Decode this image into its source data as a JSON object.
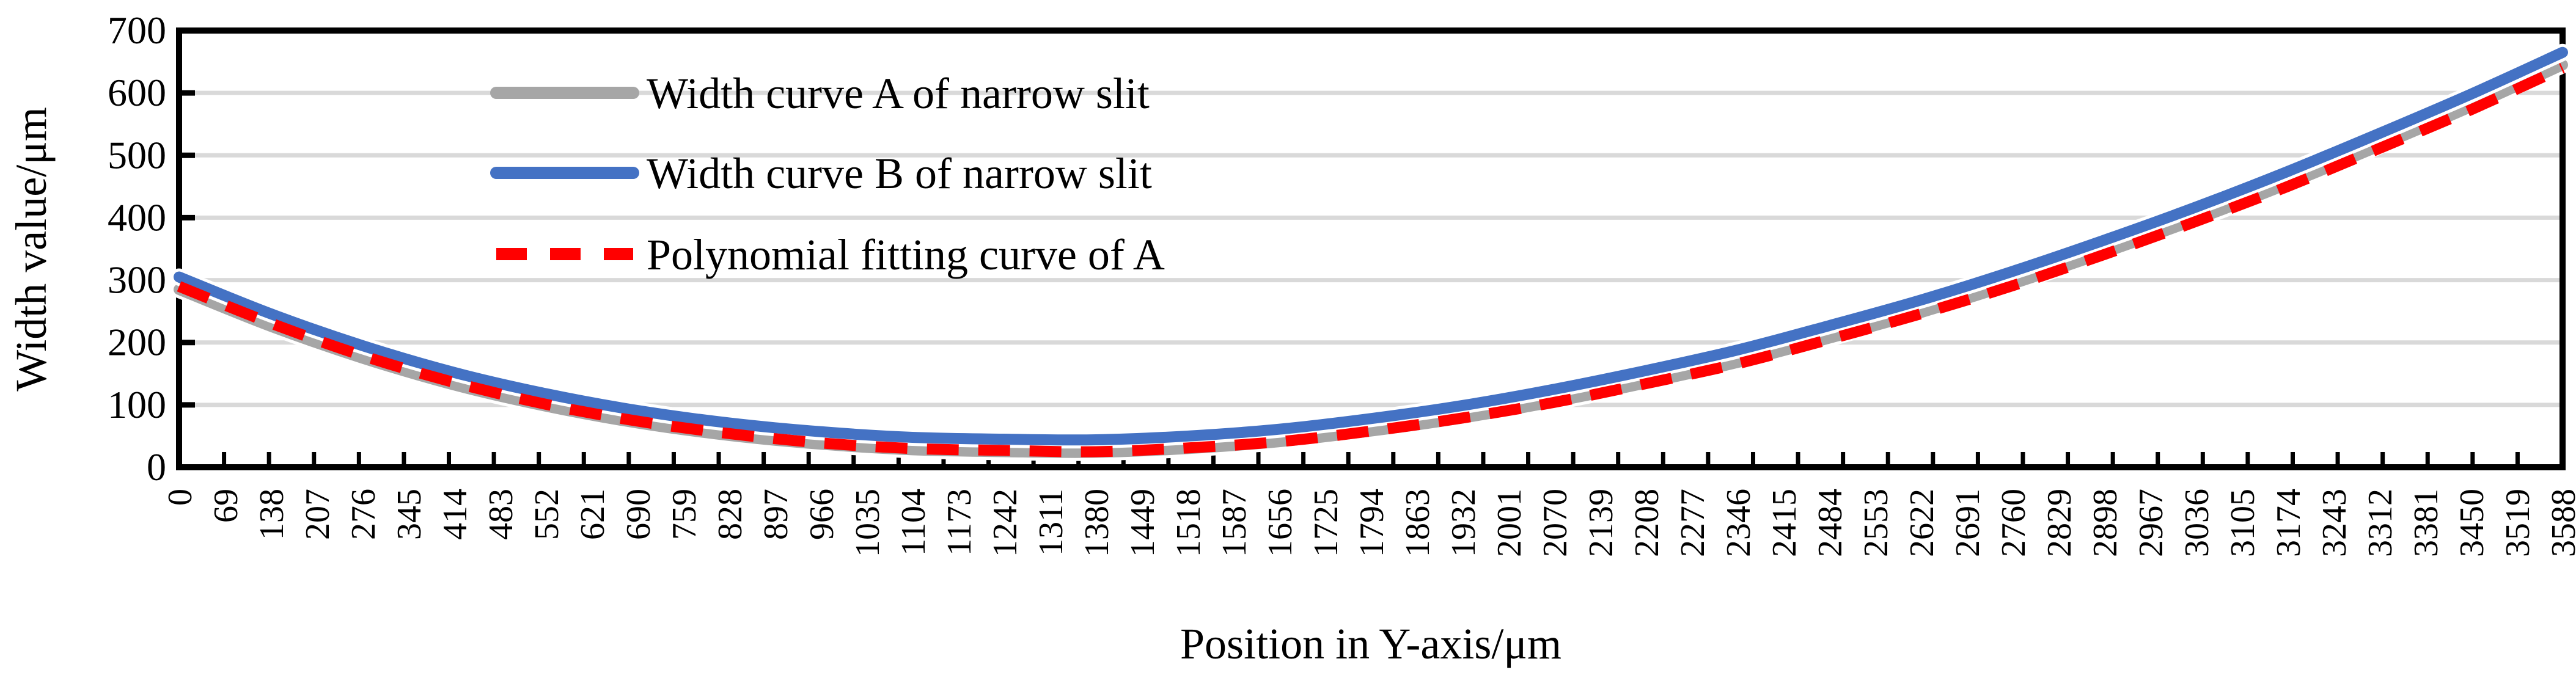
{
  "chart_data": {
    "type": "line",
    "title": "",
    "xlabel": "Position in Y-axis/μm",
    "ylabel": "Width value/μm",
    "ylim": [
      0,
      700
    ],
    "yticks": [
      0,
      100,
      200,
      300,
      400,
      500,
      600,
      700
    ],
    "x_range": [
      0,
      3588
    ],
    "grid": "horizontal-only",
    "legend_position": "top-left-inside",
    "xtick_labels": [
      0,
      69,
      138,
      207,
      276,
      345,
      414,
      483,
      552,
      621,
      690,
      759,
      828,
      897,
      966,
      1035,
      1104,
      1173,
      1242,
      1311,
      1380,
      1449,
      1518,
      1587,
      1656,
      1725,
      1794,
      1863,
      1932,
      2001,
      2070,
      2139,
      2208,
      2277,
      2346,
      2415,
      2484,
      2553,
      2622,
      2691,
      2760,
      2829,
      2898,
      2967,
      3036,
      3105,
      3174,
      3243,
      3312,
      3381,
      3450,
      3519,
      3588
    ],
    "x": [
      0,
      138,
      276,
      414,
      552,
      690,
      828,
      966,
      1104,
      1242,
      1380,
      1518,
      1656,
      1794,
      1932,
      2070,
      2208,
      2346,
      2484,
      2622,
      2760,
      2898,
      3036,
      3174,
      3312,
      3450,
      3588
    ],
    "series": [
      {
        "name": "Width curve A of narrow slit",
        "color": "#A6A6A6",
        "style": "solid",
        "values": [
          285,
          226,
          175,
          132,
          98,
          71,
          51,
          37,
          28,
          25,
          24,
          30,
          41,
          58,
          79,
          105,
          135,
          168,
          207,
          248,
          294,
          344,
          397,
          454,
          515,
          578,
          645
        ]
      },
      {
        "name": "Width curve B of narrow slit",
        "color": "#4472C4",
        "style": "solid",
        "values": [
          305,
          246,
          195,
          152,
          118,
          91,
          71,
          57,
          48,
          45,
          44,
          50,
          61,
          78,
          99,
          125,
          155,
          188,
          227,
          268,
          314,
          364,
          417,
          474,
          535,
          598,
          665
        ]
      },
      {
        "name": "Polynomial fitting curve of A",
        "color": "#FF0000",
        "style": "dashed",
        "values": [
          290,
          231,
          179,
          136,
          101,
          74,
          54,
          39,
          30,
          27,
          25,
          31,
          41,
          58,
          79,
          104,
          134,
          166,
          205,
          246,
          291,
          341,
          394,
          450,
          511,
          573,
          640
        ]
      }
    ]
  },
  "colors": {
    "gridline": "#D9D9D9",
    "axis_frame": "#000000",
    "line_casing": "#FFFFFF",
    "text": "#000000",
    "background": "#FFFFFF"
  }
}
